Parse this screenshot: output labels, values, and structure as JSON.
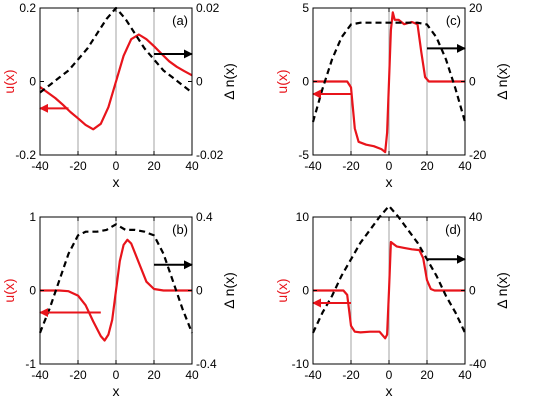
{
  "figure": {
    "colors": {
      "u": "#e8141b",
      "dn": "#000000",
      "grid": "#8c8c8c",
      "axis": "#000000"
    },
    "line_styles": {
      "u": "solid",
      "dn": "dashed"
    }
  },
  "chart_data": [
    {
      "type": "line",
      "panel_label": "(a)",
      "xlabel": "x",
      "ylabel_left": "u(x)",
      "ylabel_right": "Δ n(x)",
      "xlim": [
        -40,
        40
      ],
      "ylim_left": [
        -0.2,
        0.2
      ],
      "ylim_right": [
        -0.02,
        0.02
      ],
      "xticks": [
        "-40",
        "-20",
        "0",
        "20",
        "40"
      ],
      "yticks_left": [
        {
          "v": -0.2,
          "label": "-0.2"
        },
        {
          "v": 0,
          "label": "0"
        },
        {
          "v": 0.2,
          "label": "0.2"
        }
      ],
      "yticks_right": [
        {
          "v": -0.02,
          "label": "-0.02"
        },
        {
          "v": 0,
          "label": "0"
        },
        {
          "v": 0.02,
          "label": "0.02"
        }
      ],
      "vertical_grid_x": [
        -20,
        0,
        20
      ],
      "series": [
        {
          "axis": "left",
          "x": [
            -40,
            -36,
            -32,
            -28,
            -24,
            -20,
            -16,
            -12,
            -8,
            -4,
            0,
            4,
            8,
            12,
            16,
            20,
            24,
            28,
            32,
            36,
            40
          ],
          "values": [
            -0.015,
            -0.03,
            -0.045,
            -0.063,
            -0.083,
            -0.1,
            -0.118,
            -0.13,
            -0.115,
            -0.07,
            0,
            0.07,
            0.115,
            0.128,
            0.115,
            0.096,
            0.075,
            0.055,
            0.04,
            0.028,
            0.017
          ]
        },
        {
          "axis": "right",
          "x": [
            -40,
            -35,
            -30,
            -25,
            -20,
            -15,
            -10,
            -5,
            0,
            5,
            10,
            15,
            20,
            25,
            30,
            35,
            40
          ],
          "values": [
            -0.003,
            -0.001,
            0.001,
            0.003,
            0.006,
            0.009,
            0.013,
            0.017,
            0.02,
            0.017,
            0.013,
            0.009,
            0.006,
            0.003,
            0.001,
            -0.001,
            -0.003
          ]
        }
      ],
      "arrows": [
        {
          "axis": "left",
          "from_x": -25,
          "to_x": -40,
          "y": -0.073
        },
        {
          "axis": "right",
          "from_x": 20,
          "to_x": 40,
          "y": 0.0075
        }
      ]
    },
    {
      "type": "line",
      "panel_label": "(b)",
      "xlabel": "x",
      "ylabel_left": "u(x)",
      "ylabel_right": "Δ n(x)",
      "xlim": [
        -40,
        40
      ],
      "ylim_left": [
        -1,
        1
      ],
      "ylim_right": [
        -0.4,
        0.4
      ],
      "xticks": [
        "-40",
        "-20",
        "0",
        "20",
        "40"
      ],
      "yticks_left": [
        {
          "v": -1,
          "label": "-1"
        },
        {
          "v": 0,
          "label": "0"
        },
        {
          "v": 1,
          "label": "1"
        }
      ],
      "yticks_right": [
        {
          "v": -0.4,
          "label": "-0.4"
        },
        {
          "v": 0,
          "label": "0"
        },
        {
          "v": 0.4,
          "label": "0.4"
        }
      ],
      "vertical_grid_x": [
        -20,
        0,
        20
      ],
      "series": [
        {
          "axis": "left",
          "x": [
            -40,
            -30,
            -25,
            -20,
            -16,
            -12,
            -8,
            -6,
            -4,
            -2,
            0,
            2,
            4,
            6,
            8,
            12,
            16,
            20,
            25,
            30,
            40
          ],
          "values": [
            0,
            0,
            -0.01,
            -0.07,
            -0.2,
            -0.42,
            -0.62,
            -0.68,
            -0.6,
            -0.4,
            0,
            0.4,
            0.62,
            0.69,
            0.64,
            0.38,
            0.12,
            0.02,
            0,
            0,
            0
          ]
        },
        {
          "axis": "right",
          "x": [
            -40,
            -35,
            -30,
            -25,
            -20,
            -16,
            -10,
            -5,
            0,
            5,
            10,
            15,
            20,
            25,
            30,
            35,
            40
          ],
          "values": [
            -0.23,
            -0.1,
            0.05,
            0.2,
            0.3,
            0.32,
            0.32,
            0.33,
            0.36,
            0.33,
            0.33,
            0.32,
            0.3,
            0.2,
            0.05,
            -0.1,
            -0.23
          ]
        }
      ],
      "arrows": [
        {
          "axis": "left",
          "from_x": -8,
          "to_x": -40,
          "y": -0.3
        },
        {
          "axis": "right",
          "from_x": 20,
          "to_x": 40,
          "y": 0.14
        }
      ]
    },
    {
      "type": "line",
      "panel_label": "(c)",
      "xlabel": "x",
      "ylabel_left": "u(x)",
      "ylabel_right": "Δ n(x)",
      "xlim": [
        -40,
        40
      ],
      "ylim_left": [
        -5,
        5
      ],
      "ylim_right": [
        -20,
        20
      ],
      "xticks": [
        "-40",
        "-20",
        "0",
        "20",
        "40"
      ],
      "yticks_left": [
        {
          "v": -5,
          "label": "-5"
        },
        {
          "v": 0,
          "label": "0"
        },
        {
          "v": 5,
          "label": "5"
        }
      ],
      "yticks_right": [
        {
          "v": -20,
          "label": "-20"
        },
        {
          "v": 0,
          "label": "0"
        },
        {
          "v": 20,
          "label": "20"
        }
      ],
      "vertical_grid_x": [
        -20,
        0,
        20
      ],
      "series": [
        {
          "axis": "left",
          "x": [
            -40,
            -22,
            -20,
            -18,
            -16,
            -12,
            -8,
            -4,
            -2,
            -1,
            0,
            1,
            2,
            3,
            5,
            8,
            12,
            15,
            17,
            19,
            21,
            40
          ],
          "values": [
            0,
            0,
            -0.4,
            -3.2,
            -4.1,
            -4.3,
            -4.4,
            -4.6,
            -4.8,
            -3.5,
            0,
            3.5,
            4.7,
            4.2,
            4.2,
            3.9,
            4.05,
            3.9,
            2.0,
            0.3,
            0,
            0
          ]
        },
        {
          "axis": "right",
          "x": [
            -40,
            -35,
            -30,
            -25,
            -20,
            -15,
            -10,
            -5,
            0,
            5,
            10,
            15,
            20,
            25,
            30,
            35,
            40
          ],
          "values": [
            -11,
            -2,
            6,
            12,
            15.5,
            16,
            16,
            16,
            16,
            16,
            16,
            16,
            15.5,
            12,
            6,
            -2,
            -11
          ]
        }
      ],
      "arrows": [
        {
          "axis": "left",
          "from_x": -20,
          "to_x": -40,
          "y": -0.85
        },
        {
          "axis": "right",
          "from_x": 20,
          "to_x": 40,
          "y": 9
        }
      ]
    },
    {
      "type": "line",
      "panel_label": "(d)",
      "xlabel": "x",
      "ylabel_left": "u(x)",
      "ylabel_right": "Δ n(x)",
      "xlim": [
        -40,
        40
      ],
      "ylim_left": [
        -10,
        10
      ],
      "ylim_right": [
        -40,
        40
      ],
      "xticks": [
        "-40",
        "-20",
        "0",
        "20",
        "40"
      ],
      "yticks_left": [
        {
          "v": -10,
          "label": "-10"
        },
        {
          "v": 0,
          "label": "0"
        },
        {
          "v": 10,
          "label": "10"
        }
      ],
      "yticks_right": [
        {
          "v": -40,
          "label": "-40"
        },
        {
          "v": 0,
          "label": "0"
        },
        {
          "v": 40,
          "label": "40"
        }
      ],
      "vertical_grid_x": [
        -20,
        0,
        20
      ],
      "series": [
        {
          "axis": "left",
          "x": [
            -40,
            -24,
            -22,
            -20,
            -18,
            -15,
            -10,
            -5,
            -2,
            -1,
            0,
            1,
            2,
            4,
            8,
            12,
            16,
            18,
            20,
            22,
            24,
            40
          ],
          "values": [
            0,
            0,
            -0.6,
            -4.8,
            -5.6,
            -5.7,
            -5.6,
            -5.6,
            -6.5,
            -6.0,
            0,
            6.6,
            6.4,
            6.0,
            5.8,
            5.6,
            5.5,
            4.4,
            1.4,
            0.2,
            0,
            0
          ]
        },
        {
          "axis": "right",
          "x": [
            -40,
            -35,
            -30,
            -25,
            -20,
            -15,
            -10,
            -5,
            0,
            5,
            10,
            15,
            20,
            25,
            30,
            35,
            40
          ],
          "values": [
            -23,
            -12,
            -3,
            8,
            17,
            26,
            33,
            40,
            46,
            40,
            33,
            26,
            17,
            8,
            -3,
            -12,
            -23
          ]
        }
      ],
      "arrows": [
        {
          "axis": "left",
          "from_x": -20,
          "to_x": -40,
          "y": -1.7
        },
        {
          "axis": "right",
          "from_x": 20,
          "to_x": 40,
          "y": 17
        }
      ]
    }
  ]
}
